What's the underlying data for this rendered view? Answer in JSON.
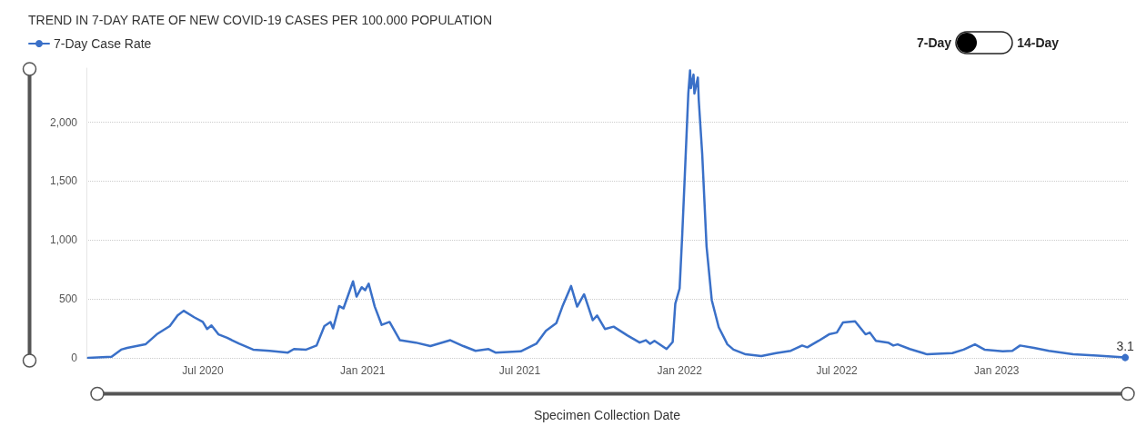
{
  "chart_data": {
    "type": "line",
    "title": "TREND IN 7-DAY RATE OF NEW COVID-19 CASES PER 100.000 POPULATION",
    "xlabel": "Specimen Collection Date",
    "legend": "top left",
    "grid": "y",
    "xlim": [
      "2020-02-18",
      "2023-06-01"
    ],
    "xticks": [
      {
        "value": "2020-07-01",
        "label": "Jul 2020"
      },
      {
        "value": "2021-01-01",
        "label": "Jan 2021"
      },
      {
        "value": "2021-07-01",
        "label": "Jul 2021"
      },
      {
        "value": "2022-01-01",
        "label": "Jan 2022"
      },
      {
        "value": "2022-07-01",
        "label": "Jul 2022"
      },
      {
        "value": "2023-01-01",
        "label": "Jan 2023"
      }
    ],
    "ylim": [
      0,
      2460
    ],
    "yticks": [
      0,
      500,
      {
        "value": 1000,
        "label": "1,000"
      },
      {
        "value": 1500,
        "label": "1,500"
      },
      {
        "value": 2000,
        "label": "2,000"
      }
    ],
    "x": [
      "2020-02-20",
      "2020-03-18",
      "2020-03-29",
      "2020-04-05",
      "2020-04-26",
      "2020-05-09",
      "2020-05-24",
      "2020-06-02",
      "2020-06-09",
      "2020-06-21",
      "2020-07-01",
      "2020-07-06",
      "2020-07-11",
      "2020-07-19",
      "2020-07-29",
      "2020-08-12",
      "2020-08-28",
      "2020-09-16",
      "2020-10-07",
      "2020-10-14",
      "2020-10-28",
      "2020-11-09",
      "2020-11-18",
      "2020-11-25",
      "2020-11-28",
      "2020-12-05",
      "2020-12-10",
      "2020-12-21",
      "2020-12-25",
      "2020-12-31",
      "2021-01-04",
      "2021-01-08",
      "2021-01-15",
      "2021-01-23",
      "2021-02-01",
      "2021-02-13",
      "2021-03-03",
      "2021-03-20",
      "2021-04-12",
      "2021-04-27",
      "2021-05-11",
      "2021-05-26",
      "2021-06-03",
      "2021-07-02",
      "2021-07-20",
      "2021-07-31",
      "2021-08-12",
      "2021-08-19",
      "2021-08-29",
      "2021-09-05",
      "2021-09-13",
      "2021-09-23",
      "2021-09-28",
      "2021-10-07",
      "2021-10-17",
      "2021-11-02",
      "2021-11-16",
      "2021-11-23",
      "2021-11-28",
      "2021-12-03",
      "2021-12-17",
      "2021-12-24",
      "2021-12-27",
      "2022-01-01",
      "2022-01-04",
      "2022-01-07",
      "2022-01-11",
      "2022-01-13",
      "2022-01-14",
      "2022-01-17",
      "2022-01-18",
      "2022-01-22",
      "2022-01-23",
      "2022-01-27",
      "2022-02-01",
      "2022-02-07",
      "2022-02-15",
      "2022-02-25",
      "2022-03-04",
      "2022-03-18",
      "2022-04-05",
      "2022-04-22",
      "2022-05-09",
      "2022-05-22",
      "2022-05-28",
      "2022-06-10",
      "2022-06-22",
      "2022-07-01",
      "2022-07-08",
      "2022-07-22",
      "2022-08-03",
      "2022-08-08",
      "2022-08-15",
      "2022-08-29",
      "2022-09-04",
      "2022-09-09",
      "2022-09-23",
      "2022-10-13",
      "2022-11-11",
      "2022-11-24",
      "2022-12-07",
      "2022-12-18",
      "2023-01-08",
      "2023-01-19",
      "2023-01-28",
      "2023-02-13",
      "2023-03-02",
      "2023-03-30",
      "2023-04-27",
      "2023-05-29"
    ],
    "series": [
      {
        "name": "7-Day Case Rate",
        "color": "#3a70c8",
        "values": [
          0,
          10,
          70,
          85,
          115,
          200,
          270,
          360,
          400,
          345,
          305,
          245,
          275,
          200,
          170,
          120,
          70,
          60,
          45,
          75,
          70,
          105,
          270,
          305,
          250,
          440,
          420,
          650,
          520,
          600,
          575,
          630,
          435,
          280,
          305,
          150,
          130,
          100,
          150,
          100,
          60,
          75,
          45,
          55,
          120,
          230,
          295,
          435,
          610,
          435,
          540,
          320,
          360,
          245,
          265,
          190,
          130,
          150,
          120,
          145,
          75,
          135,
          460,
          590,
          1045,
          1555,
          2245,
          2440,
          2290,
          2405,
          2245,
          2380,
          2190,
          1730,
          945,
          490,
          260,
          115,
          70,
          30,
          15,
          40,
          60,
          105,
          90,
          145,
          200,
          215,
          300,
          310,
          200,
          215,
          145,
          130,
          105,
          115,
          75,
          30,
          40,
          70,
          115,
          70,
          55,
          60,
          105,
          85,
          60,
          30,
          20,
          3.1
        ]
      }
    ],
    "annotations": [
      "7-Day",
      "14-Day",
      {
        "text": "3.1",
        "x": "2023-05-29",
        "y": 3.1
      }
    ]
  }
}
